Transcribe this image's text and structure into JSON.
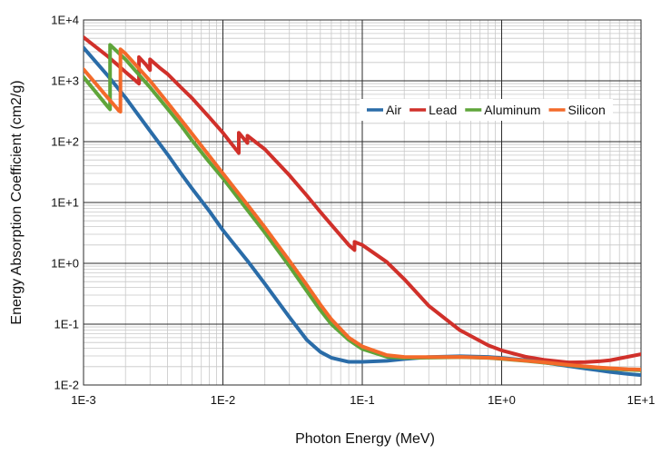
{
  "chart_data": {
    "type": "line",
    "title": "",
    "xlabel": "Photon Energy (MeV)",
    "ylabel": "Energy Absorption Coefficient (cm2/g)",
    "x_scale": "log",
    "y_scale": "log",
    "xlim": [
      0.001,
      10
    ],
    "ylim": [
      0.01,
      10000
    ],
    "x_ticks": [
      {
        "value": 0.001,
        "label": "1E-3"
      },
      {
        "value": 0.01,
        "label": "1E-2"
      },
      {
        "value": 0.1,
        "label": "1E-1"
      },
      {
        "value": 1,
        "label": "1E+0"
      },
      {
        "value": 10,
        "label": "1E+1"
      }
    ],
    "y_ticks": [
      {
        "value": 0.01,
        "label": "1E-2"
      },
      {
        "value": 0.1,
        "label": "1E-1"
      },
      {
        "value": 1,
        "label": "1E+0"
      },
      {
        "value": 10,
        "label": "1E+1"
      },
      {
        "value": 100,
        "label": "1E+2"
      },
      {
        "value": 1000,
        "label": "1E+3"
      },
      {
        "value": 10000,
        "label": "1E+4"
      }
    ],
    "grid": true,
    "legend_position": "top-right",
    "series": [
      {
        "name": "Air",
        "color": "#2a6ca8",
        "points": [
          [
            0.001,
            3500
          ],
          [
            0.0015,
            1200
          ],
          [
            0.002,
            530
          ],
          [
            0.003,
            150
          ],
          [
            0.004,
            62
          ],
          [
            0.005,
            30
          ],
          [
            0.006,
            17
          ],
          [
            0.008,
            7.2
          ],
          [
            0.01,
            3.5
          ],
          [
            0.015,
            1.1
          ],
          [
            0.02,
            0.46
          ],
          [
            0.03,
            0.13
          ],
          [
            0.04,
            0.055
          ],
          [
            0.05,
            0.035
          ],
          [
            0.06,
            0.028
          ],
          [
            0.08,
            0.024
          ],
          [
            0.1,
            0.024
          ],
          [
            0.15,
            0.025
          ],
          [
            0.2,
            0.0267
          ],
          [
            0.3,
            0.0288
          ],
          [
            0.5,
            0.0297
          ],
          [
            0.8,
            0.0289
          ],
          [
            1,
            0.0278
          ],
          [
            1.5,
            0.0255
          ],
          [
            2,
            0.0235
          ],
          [
            3,
            0.0205
          ],
          [
            4,
            0.0186
          ],
          [
            5,
            0.0174
          ],
          [
            6,
            0.0164
          ],
          [
            8,
            0.0152
          ],
          [
            10,
            0.0145
          ]
        ]
      },
      {
        "name": "Lead",
        "color": "#d0302a",
        "points": [
          [
            0.001,
            5200
          ],
          [
            0.0015,
            2500
          ],
          [
            0.002,
            1400
          ],
          [
            0.0025,
            900
          ],
          [
            0.00250001,
            2450
          ],
          [
            0.0028,
            1850
          ],
          [
            0.003,
            1500
          ],
          [
            0.00300001,
            2250
          ],
          [
            0.0035,
            1650
          ],
          [
            0.004,
            1300
          ],
          [
            0.005,
            780
          ],
          [
            0.006,
            520
          ],
          [
            0.008,
            250
          ],
          [
            0.01,
            140
          ],
          [
            0.013,
            65
          ],
          [
            0.0130001,
            140
          ],
          [
            0.015,
            95
          ],
          [
            0.0150001,
            125
          ],
          [
            0.02,
            75
          ],
          [
            0.03,
            28
          ],
          [
            0.04,
            13
          ],
          [
            0.05,
            7
          ],
          [
            0.06,
            4.3
          ],
          [
            0.08,
            2.0
          ],
          [
            0.088,
            1.65
          ],
          [
            0.0880001,
            2.25
          ],
          [
            0.1,
            2.0
          ],
          [
            0.15,
            1.05
          ],
          [
            0.2,
            0.55
          ],
          [
            0.3,
            0.2
          ],
          [
            0.5,
            0.08
          ],
          [
            0.8,
            0.045
          ],
          [
            1,
            0.037
          ],
          [
            1.5,
            0.029
          ],
          [
            2,
            0.026
          ],
          [
            3,
            0.0235
          ],
          [
            4,
            0.0238
          ],
          [
            5,
            0.0245
          ],
          [
            6,
            0.0255
          ],
          [
            8,
            0.029
          ],
          [
            10,
            0.032
          ]
        ]
      },
      {
        "name": "Aluminum",
        "color": "#5fa53a",
        "points": [
          [
            0.001,
            1150
          ],
          [
            0.0015,
            370
          ],
          [
            0.00155,
            340
          ],
          [
            0.0015501,
            3900
          ],
          [
            0.002,
            2250
          ],
          [
            0.003,
            780
          ],
          [
            0.004,
            350
          ],
          [
            0.005,
            185
          ],
          [
            0.006,
            105
          ],
          [
            0.008,
            46
          ],
          [
            0.01,
            25
          ],
          [
            0.015,
            7.5
          ],
          [
            0.02,
            3.2
          ],
          [
            0.03,
            0.9
          ],
          [
            0.04,
            0.35
          ],
          [
            0.05,
            0.17
          ],
          [
            0.06,
            0.1
          ],
          [
            0.08,
            0.055
          ],
          [
            0.1,
            0.039
          ],
          [
            0.15,
            0.029
          ],
          [
            0.2,
            0.0279
          ],
          [
            0.3,
            0.0282
          ],
          [
            0.5,
            0.0287
          ],
          [
            0.8,
            0.0279
          ],
          [
            1,
            0.0269
          ],
          [
            1.5,
            0.0248
          ],
          [
            2,
            0.0233
          ],
          [
            3,
            0.0212
          ],
          [
            4,
            0.0199
          ],
          [
            5,
            0.019
          ],
          [
            6,
            0.0185
          ],
          [
            8,
            0.0178
          ],
          [
            10,
            0.0175
          ]
        ]
      },
      {
        "name": "Silicon",
        "color": "#f36a2a",
        "points": [
          [
            0.001,
            1550
          ],
          [
            0.0015,
            520
          ],
          [
            0.0018,
            320
          ],
          [
            0.00184,
            310
          ],
          [
            0.0018401,
            3300
          ],
          [
            0.002,
            2800
          ],
          [
            0.003,
            1000
          ],
          [
            0.004,
            440
          ],
          [
            0.005,
            230
          ],
          [
            0.006,
            135
          ],
          [
            0.008,
            58
          ],
          [
            0.01,
            30
          ],
          [
            0.015,
            9.2
          ],
          [
            0.02,
            3.9
          ],
          [
            0.03,
            1.1
          ],
          [
            0.04,
            0.44
          ],
          [
            0.05,
            0.21
          ],
          [
            0.06,
            0.12
          ],
          [
            0.08,
            0.06
          ],
          [
            0.1,
            0.043
          ],
          [
            0.15,
            0.031
          ],
          [
            0.2,
            0.0289
          ],
          [
            0.3,
            0.0288
          ],
          [
            0.5,
            0.0289
          ],
          [
            0.8,
            0.028
          ],
          [
            1,
            0.0272
          ],
          [
            1.5,
            0.0251
          ],
          [
            2,
            0.0236
          ],
          [
            3,
            0.0214
          ],
          [
            4,
            0.0202
          ],
          [
            5,
            0.0194
          ],
          [
            6,
            0.0189
          ],
          [
            8,
            0.0182
          ],
          [
            10,
            0.0179
          ]
        ]
      }
    ]
  }
}
